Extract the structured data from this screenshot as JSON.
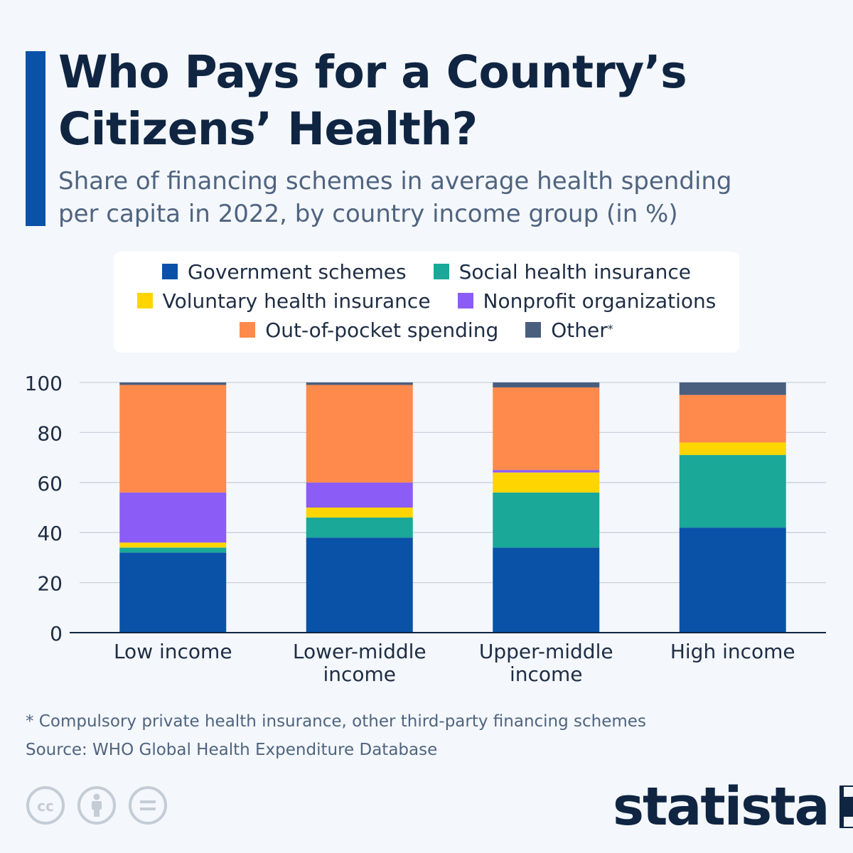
{
  "header": {
    "title_line1": "Who Pays for a Country’s",
    "title_line2": "Citizens’ Health?",
    "subtitle_line1": "Share of financing schemes in average health spending",
    "subtitle_line2": "per capita in 2022, by country income group (in %)"
  },
  "colors": {
    "accent": "#0a52a8",
    "government": "#0a52a8",
    "social": "#1aa898",
    "voluntary": "#ffd500",
    "nonprofit": "#8b5cf6",
    "oop": "#ff8a4b",
    "other": "#4a5f7e"
  },
  "legend": {
    "items": [
      {
        "label": "Government schemes",
        "color": "#0a52a8"
      },
      {
        "label": "Social health insurance",
        "color": "#1aa898"
      },
      {
        "label": "Voluntary health insurance",
        "color": "#ffd500"
      },
      {
        "label": "Nonprofit organizations",
        "color": "#8b5cf6"
      },
      {
        "label": "Out-of-pocket spending",
        "color": "#ff8a4b"
      },
      {
        "label": "Other",
        "color": "#4a5f7e"
      }
    ],
    "other_marker": "*"
  },
  "chart_data": {
    "type": "bar",
    "stacked": true,
    "title": "Share of financing schemes in average health spending per capita in 2022, by country income group (in %)",
    "categories": [
      [
        "Low income"
      ],
      [
        "Lower-middle",
        "income"
      ],
      [
        "Upper-middle",
        "income"
      ],
      [
        "High income"
      ]
    ],
    "series": [
      {
        "name": "Government schemes",
        "color": "#0a52a8",
        "values": [
          32,
          38,
          34,
          42
        ]
      },
      {
        "name": "Social health insurance",
        "color": "#1aa898",
        "values": [
          2,
          8,
          22,
          29
        ]
      },
      {
        "name": "Voluntary health insurance",
        "color": "#ffd500",
        "values": [
          2,
          4,
          8,
          5
        ]
      },
      {
        "name": "Nonprofit organizations",
        "color": "#8b5cf6",
        "values": [
          20,
          10,
          1,
          0
        ]
      },
      {
        "name": "Out-of-pocket spending",
        "color": "#ff8a4b",
        "values": [
          43,
          39,
          33,
          19
        ]
      },
      {
        "name": "Other",
        "color": "#4a5f7e",
        "values": [
          1,
          1,
          2,
          5
        ]
      }
    ],
    "ylim": [
      0,
      100
    ],
    "yticks": [
      0,
      20,
      40,
      60,
      80,
      100
    ],
    "grid": true,
    "xlabel": "",
    "ylabel": ""
  },
  "footer": {
    "footnote": "* Compulsory private health insurance, other third-party financing schemes",
    "source": "Source: WHO Global Health Expenditure Database",
    "brand": "statista"
  }
}
